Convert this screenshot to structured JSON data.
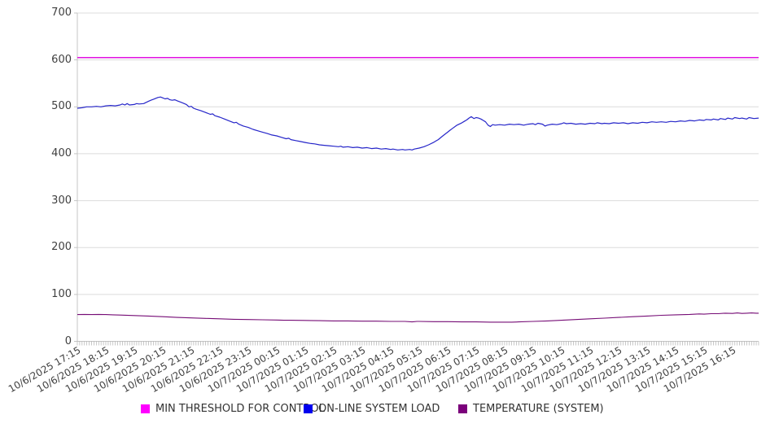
{
  "chart_data": {
    "type": "line",
    "title": "",
    "xlabel": "",
    "ylabel": "",
    "grid": "horizontal",
    "legend_position": "bottom",
    "colors": {
      "grid": "#dcdcdc",
      "axis": "#c4c4c4",
      "minor_tick": "#b0b0b0",
      "text": "#404040",
      "threshold_magenta": "#e211e2",
      "load_blue": "#2626c9",
      "temperature_purple": "#760d76"
    },
    "y_axis": {
      "ticks": [
        0,
        100,
        200,
        300,
        400,
        500,
        600,
        700
      ],
      "range": [
        0,
        700
      ]
    },
    "x_axis": {
      "range_hours": [
        0,
        23.9167
      ],
      "minor_tick_interval_hours": 0.08333,
      "tick_labels": [
        "10/6/2025 17:15",
        "10/6/2025 18:15",
        "10/6/2025 19:15",
        "10/6/2025 20:15",
        "10/6/2025 21:15",
        "10/6/2025 22:15",
        "10/6/2025 23:15",
        "10/7/2025 00:15",
        "10/7/2025 01:15",
        "10/7/2025 02:15",
        "10/7/2025 03:15",
        "10/7/2025 04:15",
        "10/7/2025 05:15",
        "10/7/2025 06:15",
        "10/7/2025 07:15",
        "10/7/2025 08:15",
        "10/7/2025 09:15",
        "10/7/2025 10:15",
        "10/7/2025 11:15",
        "10/7/2025 12:15",
        "10/7/2025 13:15",
        "10/7/2025 14:15",
        "10/7/2025 15:15",
        "10/7/2025 16:15"
      ]
    },
    "series": [
      {
        "name": "MIN THRESHOLD FOR CONTROL",
        "color": "#e211e2",
        "legend_color": "#ff00ff",
        "width": 1.5,
        "points": [
          [
            0,
            605
          ],
          [
            23.9167,
            605
          ]
        ]
      },
      {
        "name": "ON-LINE SYSTEM LOAD",
        "color": "#2626c9",
        "legend_color": "#0000ee",
        "width": 1.2,
        "points": [
          [
            0,
            497
          ],
          [
            0.17,
            498
          ],
          [
            0.33,
            500
          ],
          [
            0.5,
            500
          ],
          [
            0.67,
            501
          ],
          [
            0.83,
            500
          ],
          [
            1,
            502
          ],
          [
            1.17,
            503
          ],
          [
            1.33,
            502
          ],
          [
            1.5,
            504
          ],
          [
            1.58,
            506
          ],
          [
            1.67,
            504
          ],
          [
            1.75,
            507
          ],
          [
            1.83,
            504
          ],
          [
            2,
            505
          ],
          [
            2.08,
            507
          ],
          [
            2.17,
            506
          ],
          [
            2.33,
            507
          ],
          [
            2.5,
            512
          ],
          [
            2.58,
            514
          ],
          [
            2.67,
            516
          ],
          [
            2.75,
            518
          ],
          [
            2.83,
            520
          ],
          [
            2.92,
            521
          ],
          [
            3,
            519
          ],
          [
            3.08,
            517
          ],
          [
            3.17,
            518
          ],
          [
            3.25,
            515
          ],
          [
            3.33,
            514
          ],
          [
            3.42,
            515
          ],
          [
            3.5,
            513
          ],
          [
            3.67,
            509
          ],
          [
            3.83,
            505
          ],
          [
            3.92,
            500
          ],
          [
            4,
            501
          ],
          [
            4.08,
            497
          ],
          [
            4.17,
            495
          ],
          [
            4.33,
            492
          ],
          [
            4.5,
            488
          ],
          [
            4.67,
            484
          ],
          [
            4.75,
            485
          ],
          [
            4.83,
            481
          ],
          [
            5,
            478
          ],
          [
            5.17,
            474
          ],
          [
            5.33,
            470
          ],
          [
            5.5,
            466
          ],
          [
            5.58,
            467
          ],
          [
            5.67,
            463
          ],
          [
            5.83,
            459
          ],
          [
            6,
            456
          ],
          [
            6.17,
            452
          ],
          [
            6.33,
            449
          ],
          [
            6.5,
            446
          ],
          [
            6.67,
            443
          ],
          [
            6.83,
            440
          ],
          [
            7,
            438
          ],
          [
            7.17,
            435
          ],
          [
            7.33,
            432
          ],
          [
            7.42,
            433
          ],
          [
            7.5,
            430
          ],
          [
            7.67,
            428
          ],
          [
            7.83,
            426
          ],
          [
            8,
            424
          ],
          [
            8.17,
            422
          ],
          [
            8.33,
            421
          ],
          [
            8.5,
            419
          ],
          [
            8.67,
            418
          ],
          [
            8.83,
            417
          ],
          [
            9,
            416
          ],
          [
            9.17,
            415
          ],
          [
            9.25,
            416
          ],
          [
            9.33,
            414
          ],
          [
            9.5,
            415
          ],
          [
            9.67,
            413
          ],
          [
            9.83,
            414
          ],
          [
            10,
            412
          ],
          [
            10.17,
            413
          ],
          [
            10.33,
            411
          ],
          [
            10.5,
            412
          ],
          [
            10.67,
            410
          ],
          [
            10.83,
            411
          ],
          [
            11,
            409
          ],
          [
            11.08,
            410
          ],
          [
            11.25,
            408
          ],
          [
            11.42,
            409
          ],
          [
            11.5,
            408
          ],
          [
            11.67,
            409
          ],
          [
            11.75,
            408
          ],
          [
            11.83,
            410
          ],
          [
            12,
            412
          ],
          [
            12.17,
            415
          ],
          [
            12.33,
            419
          ],
          [
            12.5,
            424
          ],
          [
            12.58,
            427
          ],
          [
            12.67,
            430
          ],
          [
            12.83,
            438
          ],
          [
            13,
            446
          ],
          [
            13.08,
            450
          ],
          [
            13.17,
            454
          ],
          [
            13.33,
            461
          ],
          [
            13.5,
            466
          ],
          [
            13.58,
            469
          ],
          [
            13.67,
            472
          ],
          [
            13.75,
            476
          ],
          [
            13.83,
            479
          ],
          [
            13.92,
            475
          ],
          [
            14,
            477
          ],
          [
            14.08,
            476
          ],
          [
            14.17,
            474
          ],
          [
            14.25,
            471
          ],
          [
            14.33,
            468
          ],
          [
            14.42,
            461
          ],
          [
            14.5,
            458
          ],
          [
            14.58,
            462
          ],
          [
            14.67,
            461
          ],
          [
            14.83,
            462
          ],
          [
            15,
            461
          ],
          [
            15.17,
            463
          ],
          [
            15.33,
            462
          ],
          [
            15.5,
            463
          ],
          [
            15.67,
            461
          ],
          [
            15.83,
            463
          ],
          [
            16,
            464
          ],
          [
            16.08,
            462
          ],
          [
            16.17,
            465
          ],
          [
            16.33,
            463
          ],
          [
            16.42,
            459
          ],
          [
            16.5,
            461
          ],
          [
            16.67,
            463
          ],
          [
            16.83,
            462
          ],
          [
            17,
            464
          ],
          [
            17.08,
            466
          ],
          [
            17.17,
            464
          ],
          [
            17.33,
            465
          ],
          [
            17.5,
            463
          ],
          [
            17.67,
            464
          ],
          [
            17.83,
            463
          ],
          [
            18,
            465
          ],
          [
            18.17,
            464
          ],
          [
            18.25,
            466
          ],
          [
            18.42,
            464
          ],
          [
            18.5,
            465
          ],
          [
            18.67,
            464
          ],
          [
            18.83,
            466
          ],
          [
            19,
            465
          ],
          [
            19.17,
            466
          ],
          [
            19.33,
            464
          ],
          [
            19.5,
            466
          ],
          [
            19.67,
            465
          ],
          [
            19.83,
            467
          ],
          [
            20,
            466
          ],
          [
            20.17,
            468
          ],
          [
            20.33,
            467
          ],
          [
            20.5,
            468
          ],
          [
            20.67,
            467
          ],
          [
            20.83,
            469
          ],
          [
            21,
            468
          ],
          [
            21.17,
            470
          ],
          [
            21.33,
            469
          ],
          [
            21.5,
            471
          ],
          [
            21.67,
            470
          ],
          [
            21.83,
            472
          ],
          [
            22,
            471
          ],
          [
            22.08,
            473
          ],
          [
            22.25,
            472
          ],
          [
            22.33,
            474
          ],
          [
            22.5,
            472
          ],
          [
            22.58,
            475
          ],
          [
            22.75,
            473
          ],
          [
            22.83,
            476
          ],
          [
            23,
            474
          ],
          [
            23.08,
            477
          ],
          [
            23.25,
            475
          ],
          [
            23.33,
            476
          ],
          [
            23.5,
            474
          ],
          [
            23.58,
            477
          ],
          [
            23.75,
            475
          ],
          [
            23.92,
            476
          ]
        ]
      },
      {
        "name": "TEMPERATURE (SYSTEM)",
        "color": "#760d76",
        "legend_color": "#7b007b",
        "width": 1.1,
        "points": [
          [
            0,
            57
          ],
          [
            0.25,
            57.5
          ],
          [
            0.5,
            57
          ],
          [
            0.75,
            57.5
          ],
          [
            1,
            57
          ],
          [
            1.25,
            56.5
          ],
          [
            1.5,
            56
          ],
          [
            2,
            55
          ],
          [
            2.5,
            54
          ],
          [
            3,
            52.5
          ],
          [
            3.5,
            51
          ],
          [
            4,
            50
          ],
          [
            4.5,
            49
          ],
          [
            5,
            48
          ],
          [
            5.5,
            47
          ],
          [
            6,
            46.5
          ],
          [
            6.5,
            46
          ],
          [
            7,
            45.5
          ],
          [
            7.25,
            45
          ],
          [
            7.5,
            45
          ],
          [
            8,
            44.5
          ],
          [
            8.5,
            44
          ],
          [
            9,
            43.5
          ],
          [
            9.5,
            43.5
          ],
          [
            10,
            43
          ],
          [
            10.5,
            43
          ],
          [
            11,
            42.5
          ],
          [
            11.5,
            42.5
          ],
          [
            11.75,
            41.5
          ],
          [
            11.92,
            42.5
          ],
          [
            12,
            42.5
          ],
          [
            12.5,
            42
          ],
          [
            13,
            42
          ],
          [
            13.5,
            41.5
          ],
          [
            14,
            41.5
          ],
          [
            14.5,
            41
          ],
          [
            15,
            41
          ],
          [
            15.25,
            41
          ],
          [
            15.5,
            41.5
          ],
          [
            16,
            42.5
          ],
          [
            16.5,
            43.5
          ],
          [
            17,
            45
          ],
          [
            17.5,
            46.5
          ],
          [
            18,
            48
          ],
          [
            18.5,
            49.5
          ],
          [
            19,
            51
          ],
          [
            19.5,
            52.5
          ],
          [
            20,
            54
          ],
          [
            20.5,
            55.5
          ],
          [
            21,
            56.5
          ],
          [
            21.5,
            57.5
          ],
          [
            21.83,
            58.5
          ],
          [
            22,
            58
          ],
          [
            22.25,
            59
          ],
          [
            22.5,
            59
          ],
          [
            22.75,
            60
          ],
          [
            23,
            59.5
          ],
          [
            23.17,
            60.5
          ],
          [
            23.33,
            59.5
          ],
          [
            23.5,
            60
          ],
          [
            23.67,
            60.5
          ],
          [
            23.83,
            60
          ],
          [
            23.92,
            60
          ]
        ]
      }
    ]
  },
  "legend": {
    "items": [
      {
        "label": "MIN THRESHOLD FOR CONTROL"
      },
      {
        "label": "ON-LINE SYSTEM LOAD"
      },
      {
        "label": "TEMPERATURE (SYSTEM)"
      }
    ]
  }
}
